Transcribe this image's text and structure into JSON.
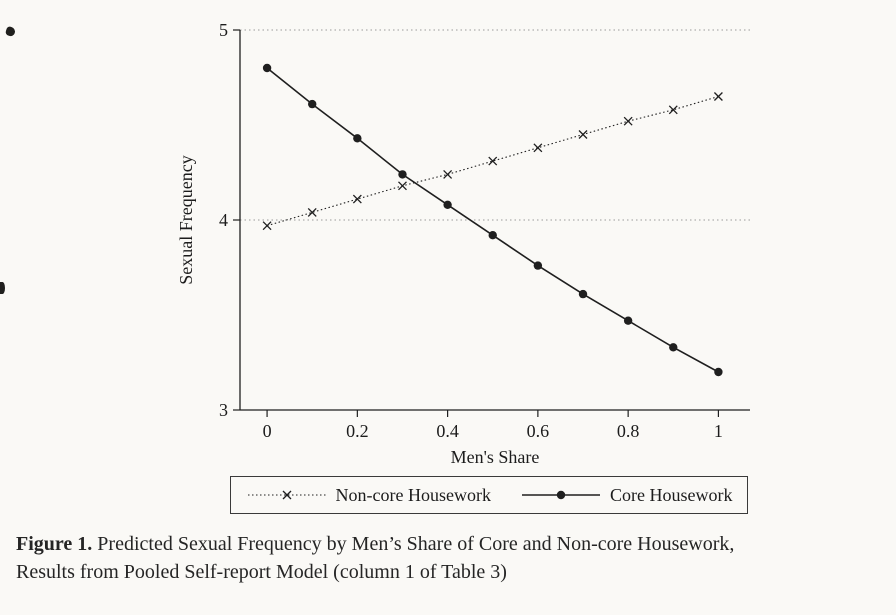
{
  "chart_data": {
    "type": "line",
    "title": "",
    "xlabel": "Men's Share",
    "ylabel": "Sexual Frequency",
    "xlim": [
      -0.06,
      1.07
    ],
    "ylim": [
      3,
      5
    ],
    "x": [
      0,
      0.1,
      0.2,
      0.3,
      0.4,
      0.5,
      0.6,
      0.7,
      0.8,
      0.9,
      1.0
    ],
    "xticks": [
      0,
      0.2,
      0.4,
      0.6,
      0.8,
      1
    ],
    "xtick_labels": [
      "0",
      "0.2",
      "0.4",
      "0.6",
      "0.8",
      "1"
    ],
    "yticks": [
      3,
      4,
      5
    ],
    "ytick_labels": [
      "3",
      "4",
      "5"
    ],
    "gridlines_y": [
      4,
      5
    ],
    "grid": "horizontal-dotted",
    "legend_position": "bottom",
    "series": [
      {
        "name": "Non-core Housework",
        "marker": "x",
        "line": "dotted",
        "color": "#1f1f1f",
        "values": [
          3.97,
          4.04,
          4.11,
          4.18,
          4.24,
          4.31,
          4.38,
          4.45,
          4.52,
          4.58,
          4.65
        ]
      },
      {
        "name": "Core Housework",
        "marker": "circle",
        "line": "solid",
        "color": "#1f1f1f",
        "values": [
          4.8,
          4.61,
          4.43,
          4.24,
          4.08,
          3.92,
          3.76,
          3.61,
          3.47,
          3.33,
          3.2
        ]
      }
    ]
  },
  "caption": {
    "label": "Figure 1.",
    "line1": "Predicted Sexual Frequency by Men’s Share of Core and Non-core Housework,",
    "line2": "Results from Pooled Self-report Model (column 1 of Table 3)"
  },
  "colors": {
    "ink": "#1f1f1f",
    "gridline": "#9a9a9a",
    "background": "#faf9f6"
  }
}
